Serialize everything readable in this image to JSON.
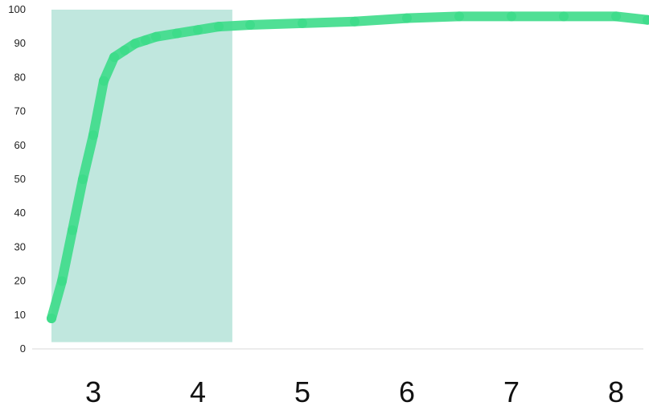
{
  "chart_data": {
    "type": "line",
    "title": "",
    "xlabel": "",
    "ylabel": "",
    "ylim": [
      0,
      100
    ],
    "xlim": [
      2.6,
      8.3
    ],
    "grid": false,
    "y_ticks": [
      "0",
      "10",
      "20",
      "30",
      "40",
      "50",
      "60",
      "70",
      "80",
      "90",
      "100"
    ],
    "x_ticks": [
      "3",
      "4",
      "5",
      "6",
      "7",
      "8"
    ],
    "highlight_region": {
      "x_range": [
        2.6,
        4.33
      ],
      "y_range": [
        2,
        100
      ],
      "color": "#bde6dc"
    },
    "series": [
      {
        "color": "#3ddc8a",
        "x": [
          2.6,
          2.7,
          2.8,
          2.9,
          3.0,
          3.1,
          3.2,
          3.3,
          3.4,
          3.5,
          3.6,
          3.8,
          4.0,
          4.2,
          4.5,
          5.0,
          5.5,
          6.0,
          6.5,
          7.0,
          7.5,
          8.0,
          8.3
        ],
        "y": [
          9,
          20,
          35,
          50,
          63,
          79,
          86,
          88,
          90,
          91,
          92,
          93,
          94,
          95,
          95.5,
          96,
          96.5,
          97.5,
          98,
          98,
          98,
          98,
          97
        ]
      }
    ]
  },
  "colors": {
    "line": "#3ddc8a",
    "highlight": "#bde6dc",
    "axis": "#d8d8d8"
  }
}
